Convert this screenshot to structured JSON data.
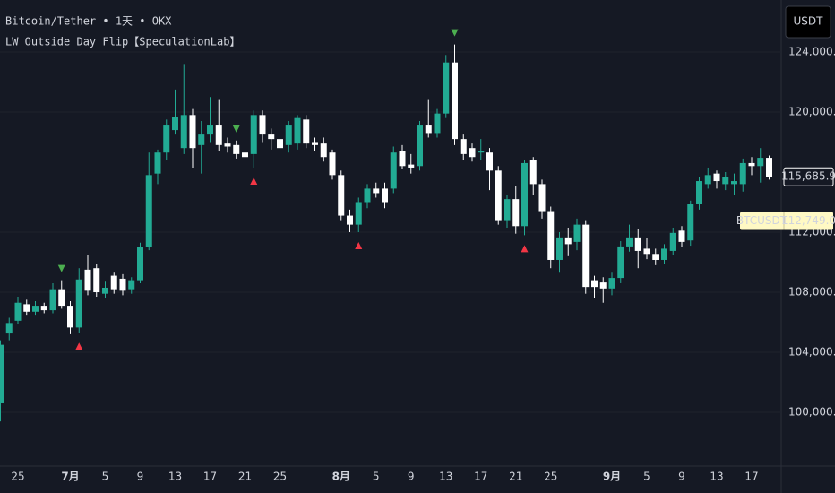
{
  "chart_data": {
    "type": "candlestick",
    "title": "Bitcoin/Tether • 1天 • OKX",
    "indicator": "LW Outside Day Flip【SpeculationLab】",
    "currency": "USDT",
    "categories": [
      null,
      null,
      "25",
      null,
      null,
      null,
      null,
      null,
      "7月",
      null,
      null,
      null,
      "5",
      null,
      null,
      null,
      "9",
      null,
      null,
      null,
      "13",
      null,
      null,
      null,
      "17",
      null,
      null,
      null,
      "21",
      null,
      null,
      null,
      "25",
      null,
      null,
      null,
      null,
      null,
      null,
      "8月",
      null,
      null,
      null,
      "5",
      null,
      null,
      null,
      "9",
      null,
      null,
      null,
      "13",
      null,
      null,
      null,
      "17",
      null,
      null,
      null,
      "21",
      null,
      null,
      null,
      "25",
      null,
      null,
      null,
      null,
      null,
      null,
      "9月",
      null,
      null,
      null,
      "5",
      null,
      null,
      null,
      "9",
      null,
      null,
      null,
      "13",
      null,
      null,
      null,
      "17",
      null,
      null
    ],
    "open": [
      100600,
      105250,
      106100,
      107200,
      106700,
      107100,
      106800,
      108200,
      107100,
      105650,
      109500,
      109600,
      107900,
      109100,
      108900,
      108200,
      108800,
      111000,
      115900,
      117300,
      118800,
      117600,
      119800,
      117800,
      118500,
      119100,
      117900,
      117800,
      117300,
      117200,
      119800,
      118500,
      118200,
      117800,
      117900,
      119500,
      118000,
      117900,
      117300,
      115800,
      113100,
      112500,
      114000,
      114900,
      114900,
      114900,
      117400,
      116500,
      116400,
      119100,
      118600,
      119900,
      123300,
      118200,
      117600,
      117300,
      117300,
      116100,
      112800,
      114200,
      112400,
      116800,
      115200,
      113400,
      110150,
      111650,
      111350,
      112500,
      108800,
      108650,
      108250,
      108950,
      111050,
      111650,
      110900,
      110550,
      110150,
      110750,
      112100,
      111450,
      113850,
      115200,
      115900,
      115200,
      115200,
      115200,
      116600,
      116400,
      116950
    ],
    "high": [
      104800,
      106300,
      107700,
      107500,
      107400,
      107300,
      108600,
      108800,
      107400,
      109600,
      110500,
      109900,
      108700,
      109300,
      109200,
      109000,
      111300,
      117300,
      117500,
      119500,
      121500,
      123200,
      120200,
      119400,
      121000,
      120800,
      118300,
      118100,
      118800,
      120100,
      120100,
      118900,
      118400,
      119400,
      119800,
      119800,
      118300,
      118300,
      117500,
      116100,
      113500,
      114300,
      115200,
      115300,
      115300,
      117700,
      117800,
      117200,
      119400,
      120800,
      120200,
      123800,
      124500,
      118500,
      117900,
      118200,
      117600,
      116400,
      114500,
      115100,
      116800,
      117000,
      115500,
      113700,
      112000,
      112300,
      112900,
      112800,
      109100,
      109000,
      109300,
      111400,
      112500,
      112200,
      111600,
      110900,
      111200,
      112300,
      112400,
      114100,
      115700,
      116300,
      116100,
      116000,
      115900,
      116900,
      117000,
      117600,
      117100
    ],
    "low": [
      99400,
      104800,
      105900,
      106500,
      106500,
      106600,
      106600,
      106900,
      105200,
      105300,
      107800,
      107700,
      107600,
      107900,
      107800,
      107900,
      108600,
      110800,
      115200,
      116800,
      118500,
      117200,
      116300,
      115900,
      118000,
      117400,
      117300,
      116900,
      116200,
      116300,
      118000,
      117500,
      115000,
      117300,
      117500,
      117600,
      117400,
      116700,
      115500,
      112800,
      112000,
      112000,
      113600,
      114300,
      113600,
      114600,
      116200,
      115900,
      116100,
      118300,
      118300,
      119600,
      117800,
      116800,
      116700,
      116800,
      114800,
      112500,
      112300,
      111900,
      111800,
      114500,
      112900,
      109600,
      109300,
      110400,
      110800,
      107900,
      107600,
      107300,
      107800,
      108600,
      110700,
      109600,
      110200,
      109800,
      109900,
      110500,
      111000,
      111100,
      113500,
      114900,
      114900,
      114800,
      114500,
      114700,
      115800,
      115300,
      115500
    ],
    "close": [
      104500,
      105950,
      107300,
      106700,
      107100,
      106800,
      108200,
      107100,
      105650,
      108850,
      108100,
      108000,
      108300,
      108200,
      108100,
      108800,
      111000,
      115800,
      117300,
      119100,
      119700,
      119800,
      117600,
      118500,
      119100,
      117800,
      117700,
      117200,
      117000,
      119800,
      118500,
      118200,
      117600,
      119100,
      119600,
      117900,
      117800,
      117000,
      115800,
      113100,
      112500,
      114000,
      114900,
      114600,
      114000,
      117300,
      116400,
      116300,
      119100,
      118600,
      119900,
      123300,
      118200,
      117200,
      117000,
      117400,
      116100,
      112800,
      114200,
      112400,
      116600,
      115200,
      113400,
      110150,
      111650,
      111200,
      112500,
      108350,
      108350,
      108250,
      108950,
      111050,
      111650,
      110750,
      110550,
      110150,
      110900,
      111950,
      111350,
      113850,
      115400,
      115800,
      115400,
      115700,
      115400,
      116600,
      116400,
      116950,
      115685.9
    ],
    "up_color": "#22ab94",
    "down_color": "#ffffff",
    "down_signals": [
      7,
      27,
      52
    ],
    "down_signal_color": "#4caf50",
    "up_signals": [
      9,
      29,
      41,
      60
    ],
    "up_signal_color": "#f23645",
    "last_price": {
      "value": 115685.9,
      "label": "115,685.9"
    },
    "compare": {
      "name": "BTCUSDT",
      "value": 112749,
      "label": "112,749.0"
    },
    "ylim": [
      96420,
      127460
    ],
    "yticks": [
      {
        "value": 100000,
        "label": "100,000.0"
      },
      {
        "value": 104000,
        "label": "104,000.0"
      },
      {
        "value": 108000,
        "label": "108,000.0"
      },
      {
        "value": 112000,
        "label": "112,000.0"
      },
      {
        "value": 120000,
        "label": "120,000.0"
      },
      {
        "value": 124000,
        "label": "124,000.0"
      }
    ],
    "grid": true
  }
}
